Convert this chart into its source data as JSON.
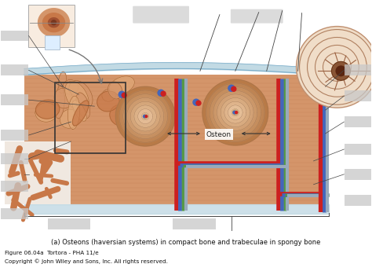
{
  "background_color": "#ffffff",
  "caption_main": "(a) Osteons (haversian systems) in compact bone and trabeculae in spongy bone",
  "caption_ref": "Figure 06.04a  Tortora - PHA 11/e",
  "caption_copy": "Copyright © John Wiley and Sons, Inc. All rights reserved.",
  "caption_fontsize": 6.0,
  "ref_fontsize": 5.2,
  "bone_bg": "#d4956a",
  "bone_lamella_light": "#e8c4a0",
  "bone_lamella_dark": "#b87848",
  "red_vessel": "#cc2020",
  "blue_vessel": "#4466bb",
  "green_vessel": "#559944",
  "silver_vessel": "#99aabb",
  "periosteum_color": "#b8d4e0",
  "osteon_label": "Osteon",
  "label_gray": "#c8c8c8",
  "line_color": "#444444",
  "spongy_color": "#cc8855",
  "inset_bg": "#f8ece0"
}
